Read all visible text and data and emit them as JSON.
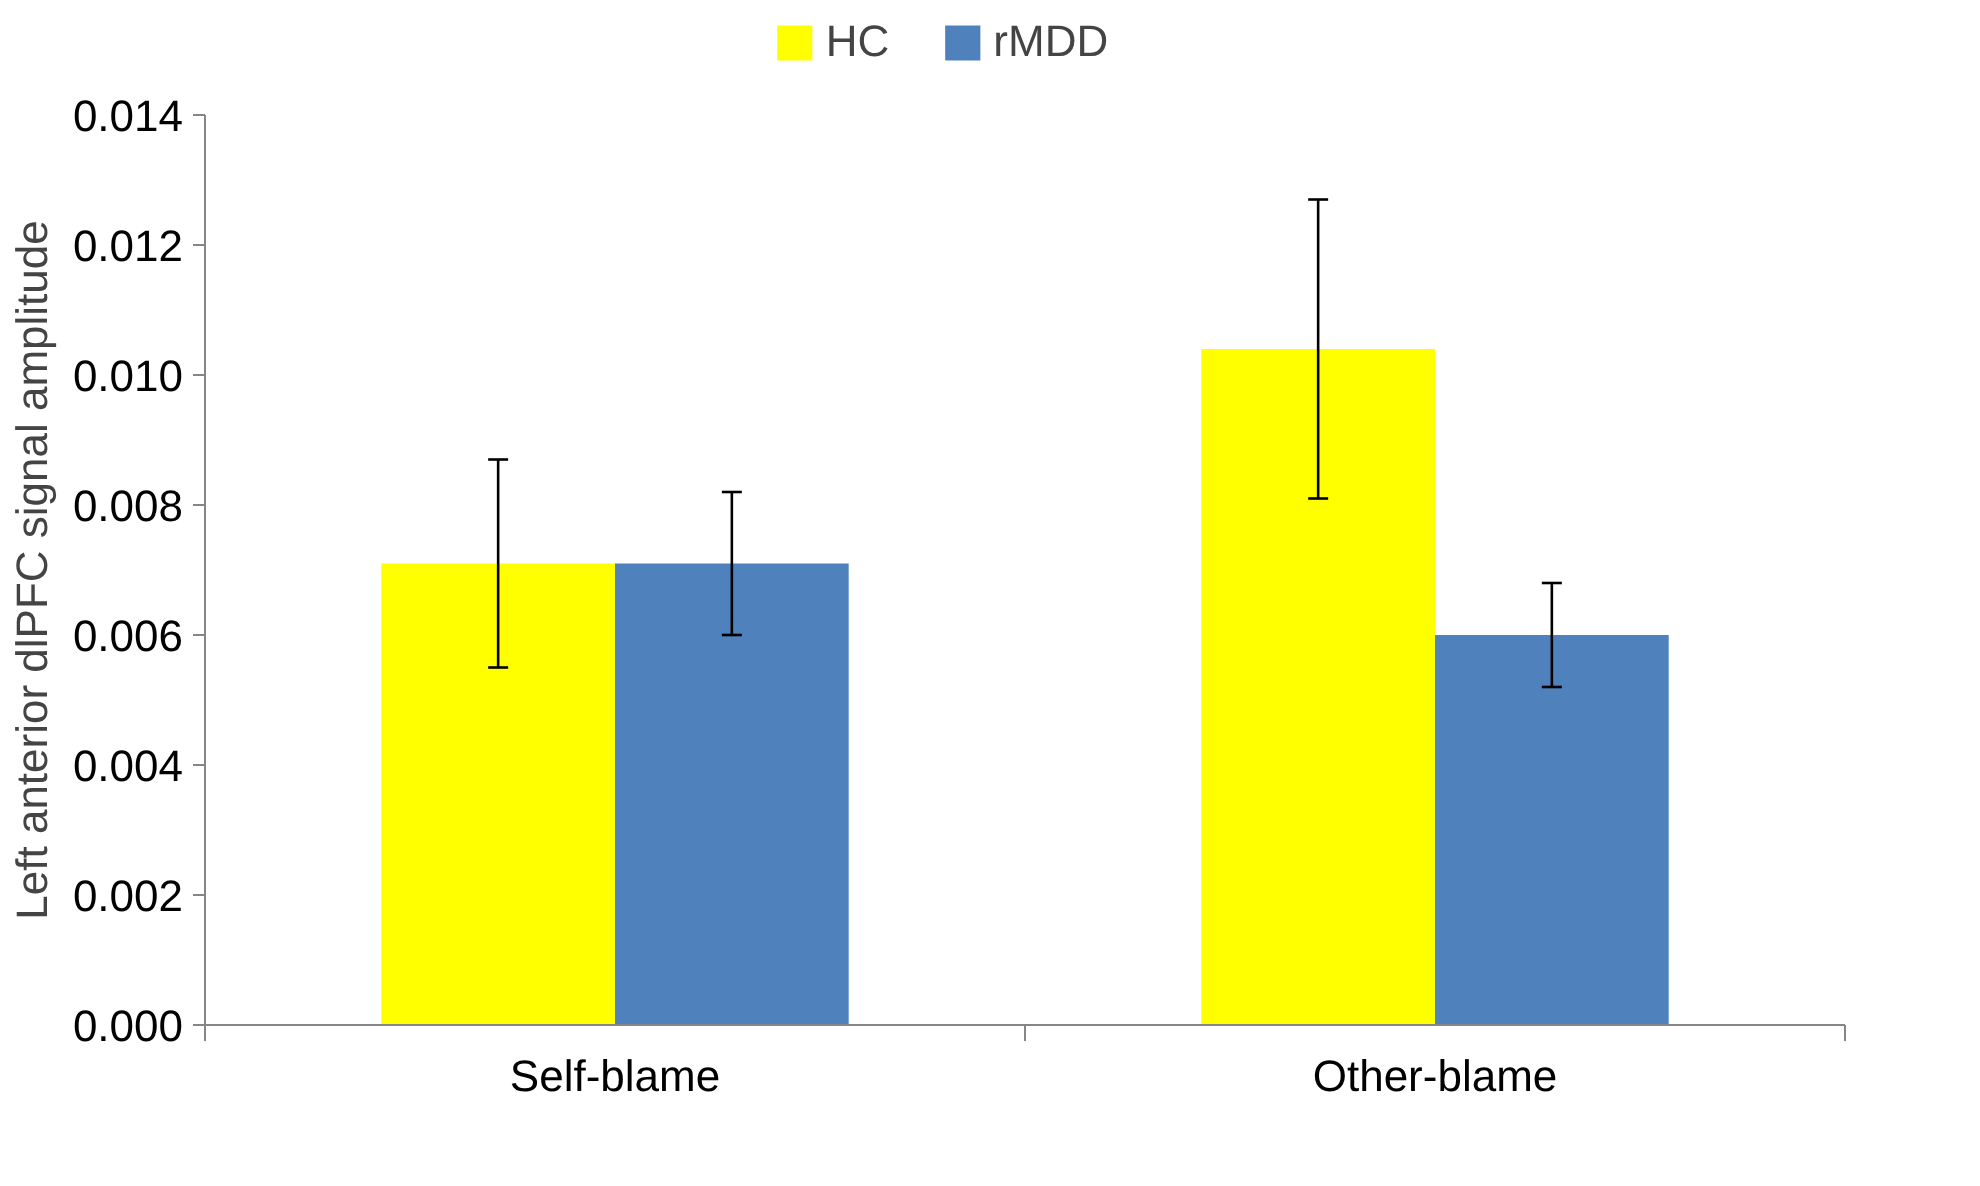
{
  "chart_data": {
    "type": "bar",
    "ylabel": "Left anterior dlPFC signal amplitude",
    "categories": [
      "Self-blame",
      "Other-blame"
    ],
    "series": [
      {
        "name": "HC",
        "color": "#ffff00",
        "values": [
          0.0071,
          0.0104
        ],
        "errors": [
          0.0016,
          0.0023
        ]
      },
      {
        "name": "rMDD",
        "color": "#4f81bd",
        "values": [
          0.0071,
          0.006
        ],
        "errors": [
          0.0011,
          0.0008
        ]
      }
    ],
    "ylim": [
      0,
      0.014
    ],
    "yticks": [
      {
        "value": 0,
        "label": "0.000"
      },
      {
        "value": 0.002,
        "label": "0.002"
      },
      {
        "value": 0.004,
        "label": "0.004"
      },
      {
        "value": 0.006,
        "label": "0.006"
      },
      {
        "value": 0.008,
        "label": "0.008"
      },
      {
        "value": 0.01,
        "label": "0.010"
      },
      {
        "value": 0.012,
        "label": "0.012"
      },
      {
        "value": 0.014,
        "label": "0.014"
      }
    ],
    "grid": false,
    "legend": "top"
  }
}
